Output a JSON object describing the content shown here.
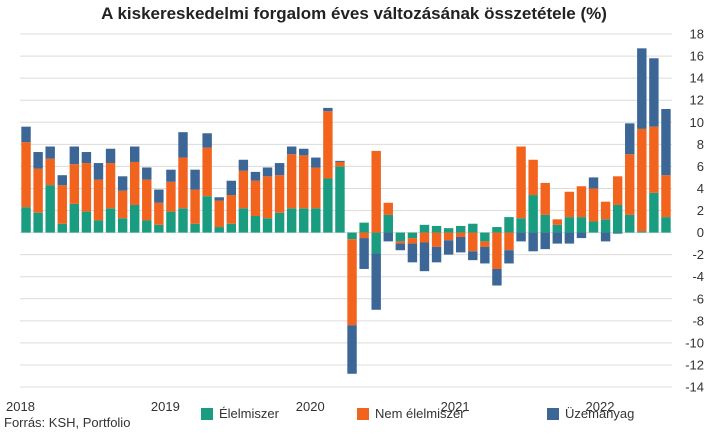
{
  "chart_data": {
    "type": "bar",
    "stacked": true,
    "title": "A kiskereskedelmi forgalom éves változásának összetétele (%)",
    "source": "Forrás: KSH, Portfolio",
    "xlabel": "",
    "ylabel": "",
    "ylim": [
      -14,
      18
    ],
    "yticks": [
      18,
      16,
      14,
      12,
      10,
      8,
      6,
      4,
      2,
      0,
      -2,
      -4,
      -6,
      -8,
      -10,
      -12,
      -14
    ],
    "y_axis_side": "right",
    "grid": true,
    "legend_position": "bottom",
    "year_labels": [
      {
        "label": "2018",
        "index": 0
      },
      {
        "label": "2019",
        "index": 12
      },
      {
        "label": "2020",
        "index": 24
      },
      {
        "label": "2021",
        "index": 36
      },
      {
        "label": "2022",
        "index": 48
      }
    ],
    "categories": [
      "2018-01",
      "2018-02",
      "2018-03",
      "2018-04",
      "2018-05",
      "2018-06",
      "2018-07",
      "2018-08",
      "2018-09",
      "2018-10",
      "2018-11",
      "2018-12",
      "2019-01",
      "2019-02",
      "2019-03",
      "2019-04",
      "2019-05",
      "2019-06",
      "2019-07",
      "2019-08",
      "2019-09",
      "2019-10",
      "2019-11",
      "2019-12",
      "2020-01",
      "2020-02",
      "2020-03",
      "2020-04",
      "2020-05",
      "2020-06",
      "2020-07",
      "2020-08",
      "2020-09",
      "2020-10",
      "2020-11",
      "2020-12",
      "2021-01",
      "2021-02",
      "2021-03",
      "2021-04",
      "2021-05",
      "2021-06",
      "2021-07",
      "2021-08",
      "2021-09",
      "2021-10",
      "2021-11",
      "2021-12",
      "2022-01",
      "2022-02",
      "2022-03",
      "2022-04",
      "2022-05",
      "2022-06"
    ],
    "series": [
      {
        "name": "Élelmiszer",
        "color": "#1a9c80",
        "values": [
          2.3,
          1.8,
          4.3,
          0.8,
          2.6,
          1.9,
          1.1,
          2.2,
          1.3,
          2.5,
          1.1,
          0.7,
          1.9,
          2.2,
          0.8,
          3.3,
          0.5,
          0.8,
          2.2,
          1.5,
          1.3,
          1.8,
          2.2,
          2.2,
          2.2,
          4.9,
          6.0,
          -0.6,
          0.9,
          -1.9,
          1.6,
          -0.8,
          -0.5,
          0.7,
          0.6,
          0.4,
          0.6,
          0.8,
          -0.8,
          0.5,
          1.4,
          1.3,
          3.4,
          1.6,
          0.7,
          1.4,
          1.4,
          1.0,
          1.2,
          2.5,
          1.6,
          0.1,
          3.6,
          1.4
        ]
      },
      {
        "name": "Nem élelmiszer",
        "color": "#f2641e",
        "values": [
          5.9,
          4.0,
          2.4,
          3.5,
          3.6,
          4.4,
          3.7,
          4.1,
          2.5,
          3.9,
          3.7,
          2.0,
          2.7,
          4.6,
          3.1,
          4.4,
          2.4,
          2.6,
          3.4,
          3.2,
          3.8,
          3.4,
          4.9,
          4.8,
          3.7,
          6.1,
          0.4,
          -7.8,
          -0.5,
          7.4,
          1.1,
          -0.2,
          -0.5,
          -0.9,
          -1.3,
          -0.7,
          -0.4,
          -1.7,
          -0.5,
          -3.3,
          -1.6,
          6.5,
          3.2,
          2.9,
          0.5,
          2.3,
          2.8,
          3.0,
          1.6,
          2.6,
          5.5,
          9.3,
          6.0,
          3.8
        ]
      },
      {
        "name": "Üzemanyag",
        "color": "#3b6695",
        "values": [
          1.4,
          1.5,
          1.1,
          0.9,
          1.6,
          1.0,
          1.5,
          1.3,
          1.3,
          1.4,
          1.1,
          1.2,
          1.1,
          2.3,
          1.8,
          1.3,
          0.3,
          1.3,
          1.0,
          0.8,
          0.8,
          1.1,
          0.7,
          0.6,
          0.9,
          0.3,
          0.1,
          -4.4,
          -2.8,
          -5.1,
          -0.8,
          -0.6,
          -1.7,
          -2.6,
          -1.4,
          -1.3,
          -1.4,
          -0.8,
          -1.5,
          -1.5,
          -1.2,
          -0.8,
          -1.7,
          -1.5,
          -1.0,
          -1.0,
          -0.5,
          1.0,
          -0.8,
          -0.1,
          2.8,
          7.3,
          6.2,
          6.0
        ]
      }
    ]
  }
}
